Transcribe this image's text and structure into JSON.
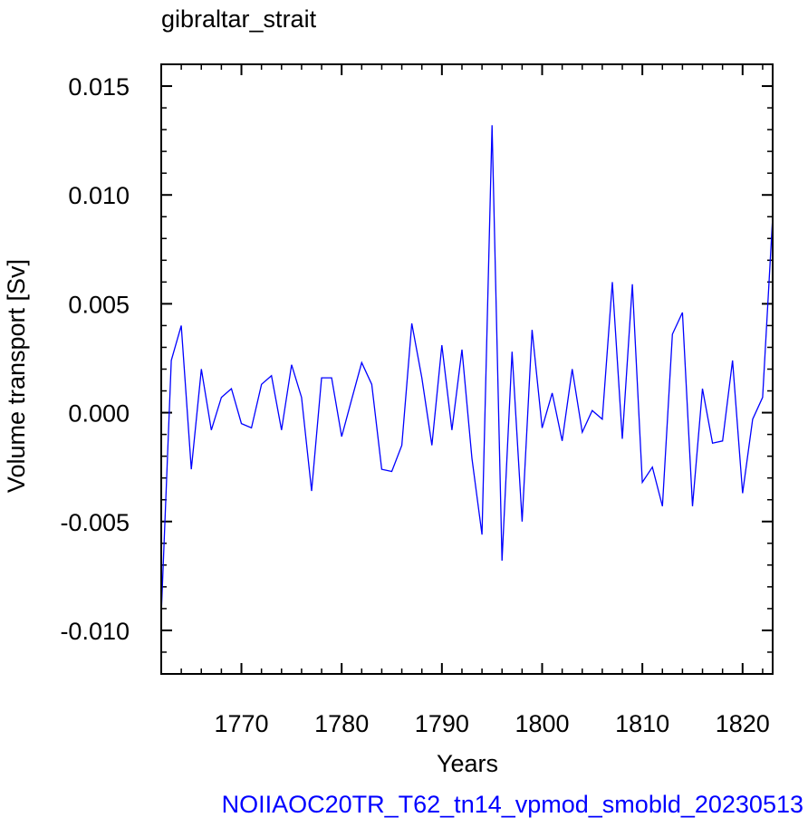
{
  "chart_data": {
    "type": "line",
    "title": "gibraltar_strait",
    "xlabel": "Years",
    "ylabel": "Volume transport [Sv]",
    "footer": "NOIIAOC20TR_T62_tn14_vpmod_smobld_20230513",
    "xlim": [
      1762,
      1823
    ],
    "ylim": [
      -0.012,
      0.016
    ],
    "x_ticks": [
      1770,
      1780,
      1790,
      1800,
      1810,
      1820
    ],
    "x_tick_labels": [
      "1770",
      "1780",
      "1790",
      "1800",
      "1810",
      "1820"
    ],
    "y_ticks": [
      0.015,
      0.01,
      0.005,
      0.0,
      -0.005,
      -0.01
    ],
    "y_tick_labels": [
      "0.015",
      "0.010",
      "0.005",
      "0.000",
      "-0.005",
      "-0.010"
    ],
    "line_color": "#0000ff",
    "grid": false,
    "series": [
      {
        "x": [
          1762,
          1763,
          1764,
          1765,
          1766,
          1767,
          1768,
          1769,
          1770,
          1771,
          1772,
          1773,
          1774,
          1775,
          1776,
          1777,
          1778,
          1779,
          1780,
          1781,
          1782,
          1783,
          1784,
          1785,
          1786,
          1787,
          1788,
          1789,
          1790,
          1791,
          1792,
          1793,
          1794,
          1795,
          1796,
          1797,
          1798,
          1799,
          1800,
          1801,
          1802,
          1803,
          1804,
          1805,
          1806,
          1807,
          1808,
          1809,
          1810,
          1811,
          1812,
          1813,
          1814,
          1815,
          1816,
          1817,
          1818,
          1819,
          1820,
          1821,
          1822,
          1823
        ],
        "values": [
          -0.0093,
          0.0024,
          0.004,
          -0.0026,
          0.002,
          -0.0008,
          0.0007,
          0.0011,
          -0.0005,
          -0.0007,
          0.0013,
          0.0017,
          -0.0008,
          0.0022,
          0.0007,
          -0.0036,
          0.0016,
          0.0016,
          -0.0011,
          0.0006,
          0.0023,
          0.0013,
          -0.0026,
          -0.0027,
          -0.0015,
          0.0041,
          0.0016,
          -0.0015,
          0.0031,
          -0.0008,
          0.0029,
          -0.0021,
          -0.0056,
          0.0132,
          -0.0068,
          0.0028,
          -0.005,
          0.0038,
          -0.0007,
          0.0009,
          -0.0013,
          0.002,
          -0.0009,
          0.0001,
          -0.0003,
          0.006,
          -0.0012,
          0.0059,
          -0.0032,
          -0.0025,
          -0.0043,
          0.0036,
          0.0046,
          -0.0043,
          0.0011,
          -0.0014,
          -0.0013,
          0.0024,
          -0.0037,
          -0.0003,
          0.0007,
          0.009
        ]
      }
    ]
  }
}
